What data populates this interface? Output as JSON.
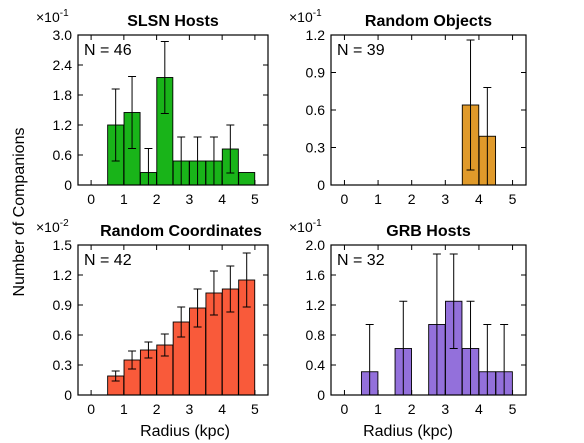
{
  "figure": {
    "ylabel": "Number of Companions",
    "xlabel": "Radius (kpc)"
  },
  "chart_data": [
    {
      "type": "bar",
      "title": "SLSN Hosts",
      "annotation": "N = 46",
      "scale_label": "×10",
      "scale_exp": "-1",
      "color": "#19b419",
      "ylim": [
        0,
        3.0
      ],
      "yticks": [
        "0",
        "0.6",
        "1.2",
        "1.8",
        "2.4",
        "3.0"
      ],
      "xlim": [
        -0.4,
        5.4
      ],
      "xticks": [
        "0",
        "1",
        "2",
        "3",
        "4",
        "5"
      ],
      "x": [
        0.75,
        1.25,
        1.75,
        2.25,
        2.75,
        3.25,
        3.75,
        4.25,
        4.75
      ],
      "values": [
        1.2,
        1.45,
        0.25,
        2.15,
        0.48,
        0.48,
        0.48,
        0.72,
        0.25
      ],
      "errors": [
        0.72,
        0.72,
        0.48,
        0.72,
        0.48,
        0.48,
        0.48,
        0.48,
        0.0
      ]
    },
    {
      "type": "bar",
      "title": "Random Objects",
      "annotation": "N = 39",
      "scale_label": "×10",
      "scale_exp": "-1",
      "color": "#e09a2a",
      "ylim": [
        0,
        1.2
      ],
      "yticks": [
        "0",
        "0.3",
        "0.6",
        "0.9",
        "1.2"
      ],
      "xlim": [
        -0.4,
        5.4
      ],
      "xticks": [
        "0",
        "1",
        "2",
        "3",
        "4",
        "5"
      ],
      "x": [
        3.75,
        4.25
      ],
      "values": [
        0.64,
        0.39
      ],
      "errors": [
        0.52,
        0.39
      ]
    },
    {
      "type": "bar",
      "title": "Random Coordinates",
      "annotation": "N = 42",
      "scale_label": "×10",
      "scale_exp": "-2",
      "color": "#f95a3a",
      "ylim": [
        0,
        1.5
      ],
      "yticks": [
        "0",
        "0.3",
        "0.6",
        "0.9",
        "1.2",
        "1.5"
      ],
      "xlim": [
        -0.4,
        5.4
      ],
      "xticks": [
        "0",
        "1",
        "2",
        "3",
        "4",
        "5"
      ],
      "x": [
        0.75,
        1.25,
        1.75,
        2.25,
        2.75,
        3.25,
        3.75,
        4.25,
        4.75
      ],
      "values": [
        0.19,
        0.35,
        0.45,
        0.5,
        0.73,
        0.87,
        1.02,
        1.06,
        1.15
      ],
      "errors": [
        0.05,
        0.09,
        0.08,
        0.11,
        0.15,
        0.19,
        0.22,
        0.23,
        0.27
      ]
    },
    {
      "type": "bar",
      "title": "GRB Hosts",
      "annotation": "N = 32",
      "scale_label": "×10",
      "scale_exp": "-1",
      "color": "#9370db",
      "ylim": [
        0,
        2.0
      ],
      "yticks": [
        "0",
        "0.4",
        "0.8",
        "1.2",
        "1.6",
        "2.0"
      ],
      "xlim": [
        -0.4,
        5.4
      ],
      "xticks": [
        "0",
        "1",
        "2",
        "3",
        "4",
        "5"
      ],
      "x": [
        0.75,
        1.75,
        2.75,
        3.25,
        3.75,
        4.25,
        4.75
      ],
      "values": [
        0.31,
        0.62,
        0.94,
        1.25,
        0.62,
        0.31,
        0.31
      ],
      "errors": [
        0.63,
        0.63,
        0.94,
        0.63,
        0.63,
        0.63,
        0.63
      ]
    }
  ]
}
